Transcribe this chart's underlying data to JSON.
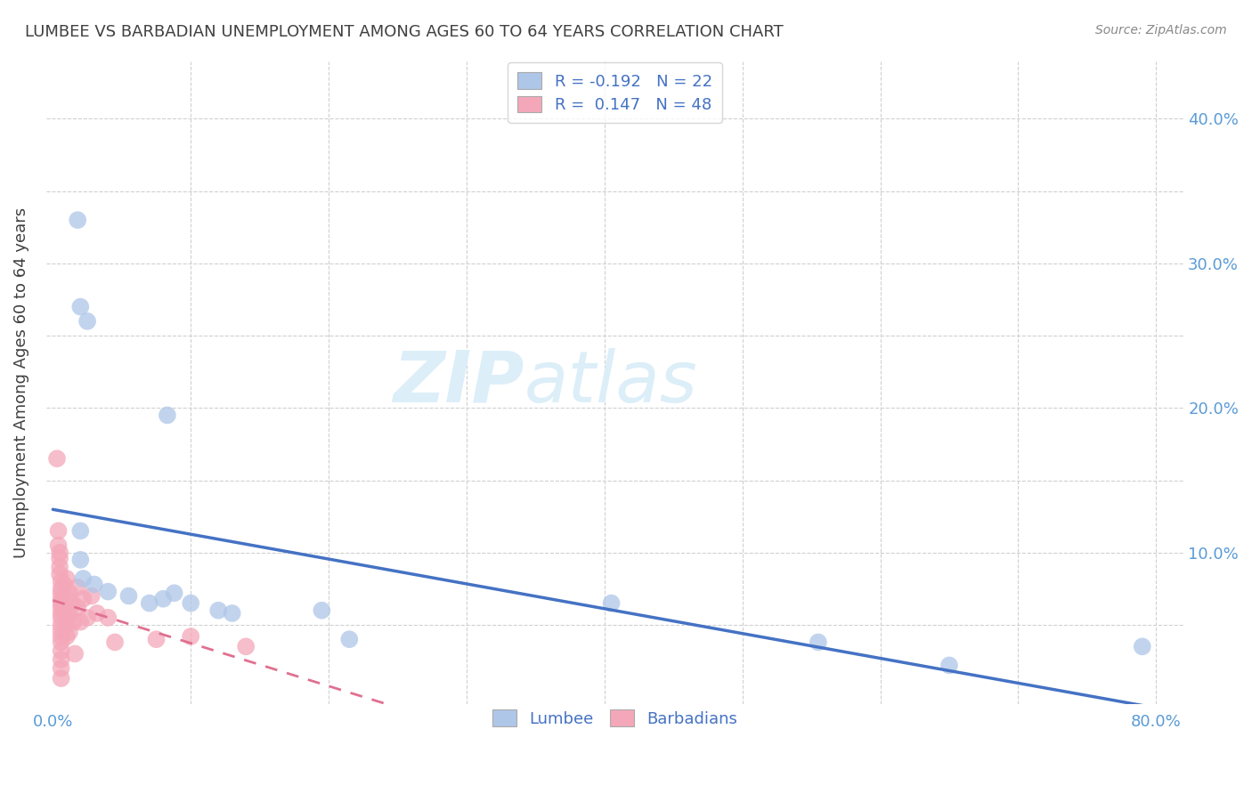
{
  "title": "LUMBEE VS BARBADIAN UNEMPLOYMENT AMONG AGES 60 TO 64 YEARS CORRELATION CHART",
  "source": "Source: ZipAtlas.com",
  "ylabel": "Unemployment Among Ages 60 to 64 years",
  "xlim": [
    -0.005,
    0.82
  ],
  "ylim": [
    -0.005,
    0.44
  ],
  "xticks_major": [
    0.0,
    0.8
  ],
  "xticks_minor": [
    0.1,
    0.2,
    0.3,
    0.4,
    0.5,
    0.6,
    0.7
  ],
  "yticks_right": [
    0.1,
    0.2,
    0.3,
    0.4
  ],
  "yticks_left_minor": [
    0.05,
    0.1,
    0.15,
    0.2,
    0.25,
    0.3,
    0.35,
    0.4
  ],
  "lumbee_R": "-0.192",
  "lumbee_N": "22",
  "barbadian_R": "0.147",
  "barbadian_N": "48",
  "lumbee_color": "#aec6e8",
  "lumbee_edge_color": "#aec6e8",
  "lumbee_line_color": "#4472c4",
  "barbadian_color": "#f4a7b9",
  "barbadian_edge_color": "#f4a7b9",
  "barbadian_line_color": "#e07090",
  "lumbee_points": [
    [
      0.018,
      0.33
    ],
    [
      0.02,
      0.27
    ],
    [
      0.025,
      0.26
    ],
    [
      0.02,
      0.115
    ],
    [
      0.02,
      0.095
    ],
    [
      0.022,
      0.082
    ],
    [
      0.03,
      0.078
    ],
    [
      0.04,
      0.073
    ],
    [
      0.055,
      0.07
    ],
    [
      0.07,
      0.065
    ],
    [
      0.08,
      0.068
    ],
    [
      0.083,
      0.195
    ],
    [
      0.088,
      0.072
    ],
    [
      0.1,
      0.065
    ],
    [
      0.12,
      0.06
    ],
    [
      0.13,
      0.058
    ],
    [
      0.195,
      0.06
    ],
    [
      0.215,
      0.04
    ],
    [
      0.405,
      0.065
    ],
    [
      0.555,
      0.038
    ],
    [
      0.65,
      0.022
    ],
    [
      0.79,
      0.035
    ]
  ],
  "barbadian_points": [
    [
      0.003,
      0.165
    ],
    [
      0.004,
      0.115
    ],
    [
      0.004,
      0.105
    ],
    [
      0.005,
      0.1
    ],
    [
      0.005,
      0.096
    ],
    [
      0.005,
      0.09
    ],
    [
      0.005,
      0.085
    ],
    [
      0.006,
      0.08
    ],
    [
      0.006,
      0.075
    ],
    [
      0.006,
      0.072
    ],
    [
      0.006,
      0.068
    ],
    [
      0.006,
      0.065
    ],
    [
      0.006,
      0.062
    ],
    [
      0.006,
      0.058
    ],
    [
      0.006,
      0.055
    ],
    [
      0.006,
      0.05
    ],
    [
      0.006,
      0.046
    ],
    [
      0.006,
      0.042
    ],
    [
      0.006,
      0.038
    ],
    [
      0.006,
      0.032
    ],
    [
      0.006,
      0.026
    ],
    [
      0.006,
      0.02
    ],
    [
      0.006,
      0.013
    ],
    [
      0.008,
      0.078
    ],
    [
      0.008,
      0.06
    ],
    [
      0.009,
      0.05
    ],
    [
      0.01,
      0.082
    ],
    [
      0.01,
      0.068
    ],
    [
      0.01,
      0.055
    ],
    [
      0.01,
      0.042
    ],
    [
      0.012,
      0.072
    ],
    [
      0.012,
      0.058
    ],
    [
      0.012,
      0.045
    ],
    [
      0.014,
      0.065
    ],
    [
      0.015,
      0.052
    ],
    [
      0.016,
      0.03
    ],
    [
      0.018,
      0.076
    ],
    [
      0.018,
      0.062
    ],
    [
      0.02,
      0.052
    ],
    [
      0.022,
      0.068
    ],
    [
      0.025,
      0.055
    ],
    [
      0.028,
      0.07
    ],
    [
      0.032,
      0.058
    ],
    [
      0.04,
      0.055
    ],
    [
      0.045,
      0.038
    ],
    [
      0.075,
      0.04
    ],
    [
      0.1,
      0.042
    ],
    [
      0.14,
      0.035
    ]
  ],
  "watermark_line1": "ZIP",
  "watermark_line2": "atlas",
  "watermark_color": "#dceef8",
  "legend_lumbee_label": "Lumbee",
  "legend_barbadian_label": "Barbadians",
  "background_color": "#ffffff",
  "grid_color": "#d0d0d0",
  "tick_color": "#5b9bd5",
  "title_color": "#404040",
  "axis_label_color": "#404040",
  "source_color": "#888888"
}
